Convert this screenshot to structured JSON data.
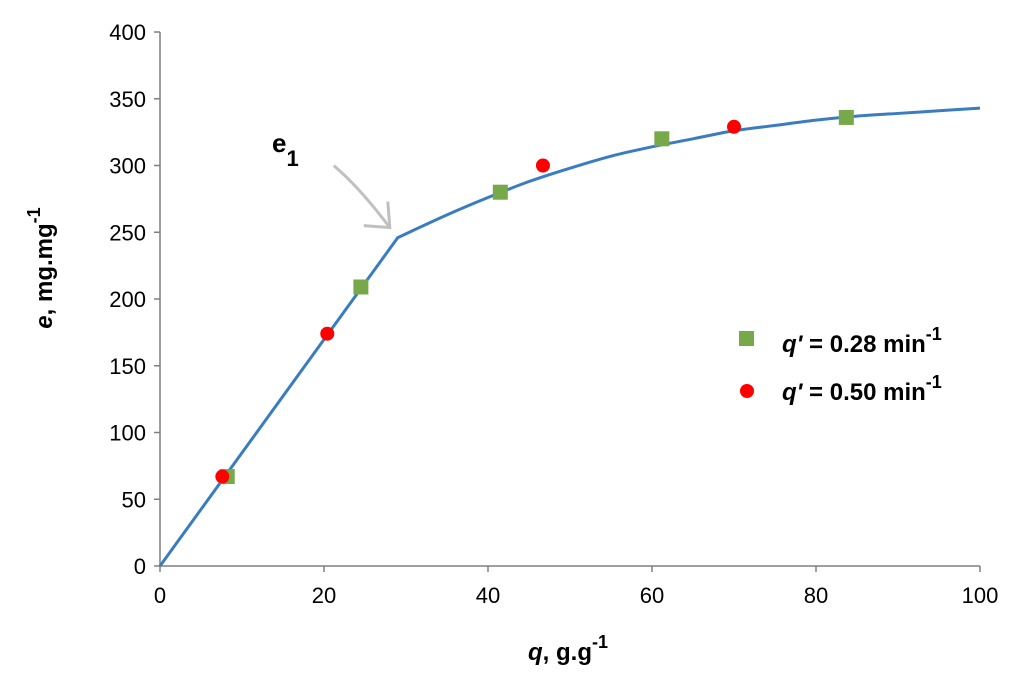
{
  "chart_data": {
    "type": "scatter",
    "xlabel": {
      "var": "q",
      "unit": ", g.g",
      "sup": "-1"
    },
    "ylabel": {
      "var": "e",
      "unit": ", mg.mg",
      "sup": "-1"
    },
    "xlim": [
      0,
      100
    ],
    "ylim": [
      0,
      400
    ],
    "x_ticks": [
      "0",
      "20",
      "40",
      "60",
      "80",
      "100"
    ],
    "y_ticks": [
      "0",
      "50",
      "100",
      "150",
      "200",
      "250",
      "300",
      "350",
      "400"
    ],
    "grid": false,
    "legend_position": "right",
    "series": [
      {
        "name": {
          "var": "q'",
          "rest": " = 0.28 min",
          "sup": "-1"
        },
        "marker": "square",
        "color": "#77a94a",
        "points": [
          [
            8.2,
            67
          ],
          [
            24.5,
            209
          ],
          [
            41.5,
            280
          ],
          [
            61.2,
            320
          ],
          [
            83.7,
            336
          ]
        ]
      },
      {
        "name": {
          "var": "q'",
          "rest": " = 0.50 min",
          "sup": "-1"
        },
        "marker": "circle",
        "color": "#ff0000",
        "points": [
          [
            7.6,
            67
          ],
          [
            20.4,
            174
          ],
          [
            46.7,
            300
          ],
          [
            70.0,
            329
          ]
        ]
      }
    ],
    "fit_line": {
      "color": "#3a7cc0",
      "points": [
        [
          0,
          0
        ],
        [
          29,
          246
        ],
        [
          35,
          263
        ],
        [
          40,
          276
        ],
        [
          45,
          288
        ],
        [
          50,
          298
        ],
        [
          55,
          307
        ],
        [
          60,
          314
        ],
        [
          65,
          320
        ],
        [
          70,
          326
        ],
        [
          75,
          330
        ],
        [
          80,
          334
        ],
        [
          85,
          337
        ],
        [
          90,
          339
        ],
        [
          95,
          341
        ],
        [
          100,
          343
        ]
      ]
    },
    "annotation": {
      "label": "e",
      "sub": "1",
      "target": [
        29,
        246
      ],
      "arrow_color": "#c0c0c0"
    }
  }
}
